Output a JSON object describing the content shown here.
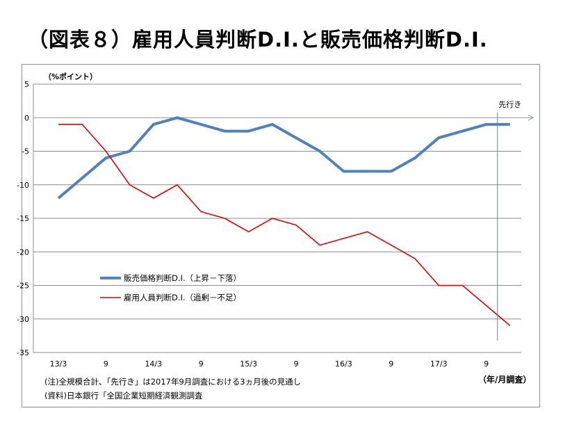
{
  "title": "（図表８）雇用人員判断D.I.と販売価格判断D.I.",
  "ylabel": "（%ポイント）",
  "xunit": "（年/月調査）",
  "notes": [
    "(注)全規模合計、「先行き」は2017年9月調査における3ヵ月後の見通し",
    "(資料)日本銀行「全国企業短期経済観測調査"
  ],
  "chart_data": {
    "type": "line",
    "title": "（図表８）雇用人員判断D.I.と販売価格判断D.I.",
    "ylabel": "（%ポイント）",
    "xlabel": "（年/月調査）",
    "ylim": [
      -35,
      5
    ],
    "yticks": [
      5,
      0,
      -5,
      -10,
      -15,
      -20,
      -25,
      -30,
      -35
    ],
    "x": [
      "13/3",
      "13/6",
      "13/9",
      "13/12",
      "14/3",
      "14/6",
      "14/9",
      "14/12",
      "15/3",
      "15/6",
      "15/9",
      "15/12",
      "16/3",
      "16/6",
      "16/9",
      "16/12",
      "17/3",
      "17/6",
      "17/9",
      "先行き"
    ],
    "xtick_labels": [
      "13/3",
      "",
      "9",
      "",
      "14/3",
      "",
      "9",
      "",
      "15/3",
      "",
      "9",
      "",
      "16/3",
      "",
      "9",
      "",
      "17/3",
      "",
      "9",
      ""
    ],
    "grid": true,
    "forecast_label": "先行き",
    "legend_position": "center-left",
    "series": [
      {
        "name": "販売価格判断D.I.（上昇－下落）",
        "color": "#4f81bd",
        "values": [
          -12,
          -9,
          -6,
          -5,
          -1,
          0,
          -1,
          -2,
          -2,
          -1,
          -3,
          -5,
          -8,
          -8,
          -8,
          -6,
          -3,
          -2,
          -1,
          -1
        ]
      },
      {
        "name": "雇用人員判断D.I.（過剰－不足）",
        "color": "#e00000",
        "values": [
          -1,
          -1,
          -5,
          -10,
          -12,
          -10,
          -14,
          -15,
          -17,
          -15,
          -16,
          -19,
          -18,
          -17,
          -19,
          -21,
          -25,
          -25,
          -28,
          -31
        ]
      }
    ]
  }
}
